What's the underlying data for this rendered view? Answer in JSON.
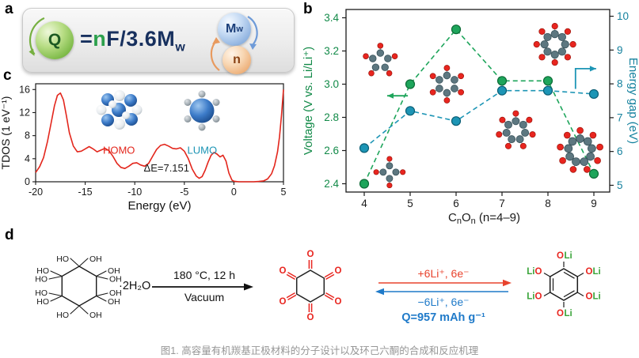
{
  "caption": "图1. 高容量有机羰基正极材料的分子设计以及环己六酮的合成和反应机理",
  "panel_labels": {
    "a": "a",
    "b": "b",
    "c": "c",
    "d": "d"
  },
  "panel_a": {
    "q": "Q",
    "eq": "=",
    "n": "n",
    "rest": "F/3.6M",
    "sub": "w",
    "mw_main": "M",
    "mw_sub": "w",
    "n_ball": "n"
  },
  "panel_d": {
    "hydrate": "·2H₂O",
    "cond_top": "180 °C, 12 h",
    "cond_bottom": "Vacuum",
    "forward": "+6Li⁺, 6e⁻",
    "backward": "−6Li⁺, 6e⁻",
    "capacity": "Q=957 mAh g⁻¹",
    "oh": "OH",
    "ho": "HO",
    "o": "O",
    "li": "Li"
  },
  "colors": {
    "voltage_green": "#1ea55b",
    "energy_gap_teal": "#1d95b5",
    "tdos_red": "#e3261c",
    "lithiation_red": "#e8432d",
    "delithiation_blue": "#1f7ac9",
    "lithium_green": "#3aa53a",
    "oxygen_red": "#e8251f"
  },
  "chart_data": [
    {
      "id": "panel_b",
      "type": "scatter",
      "x": [
        4,
        5,
        6,
        7,
        8,
        9
      ],
      "xlabel": "CnOn (n=4–9)",
      "xlabel_parts": {
        "base1": "C",
        "sub1": "n",
        "base2": "O",
        "sub2": "n",
        "rest": " (n=4–9)"
      },
      "ylabel_left": "Voltage (V vs. Li/Li⁺)",
      "ylabel_right": "Energy gap (eV)",
      "ylim_left": [
        2.35,
        3.45
      ],
      "ylim_right": [
        4.8,
        10.2
      ],
      "yticks_left": [
        2.4,
        2.6,
        2.8,
        3.0,
        3.2,
        3.4
      ],
      "yticks_right": [
        5,
        6,
        7,
        8,
        9,
        10
      ],
      "grid": false,
      "legend": "none",
      "series": [
        {
          "name": "Voltage (V vs. Li/Li⁺)",
          "axis": "left",
          "color": "#1ea55b",
          "edge": "#0c6b36",
          "label_color": "#128a48",
          "style": "dashed",
          "values": [
            2.4,
            3.0,
            3.33,
            3.02,
            3.02,
            2.46
          ]
        },
        {
          "name": "Energy gap (eV)",
          "axis": "right",
          "color": "#1d95b5",
          "edge": "#0b5e75",
          "label_color": "#15819e",
          "style": "dashed",
          "values": [
            6.1,
            7.2,
            6.9,
            7.8,
            7.8,
            7.7
          ]
        }
      ],
      "arrows": [
        {
          "axis": "left",
          "color": "#1ea55b",
          "points": [
            [
              4.95,
              2.93
            ],
            [
              4.5,
              2.93
            ]
          ]
        },
        {
          "axis": "right",
          "color": "#1d95b5",
          "points": [
            [
              8.6,
              7.85
            ],
            [
              8.6,
              8.45
            ],
            [
              9.05,
              8.45
            ]
          ]
        }
      ],
      "molecules": [
        {
          "n": 4,
          "x": 4.55,
          "y": 2.47,
          "r": 8
        },
        {
          "n": 5,
          "x": 4.35,
          "y": 3.14,
          "r": 10
        },
        {
          "n": 6,
          "x": 5.8,
          "y": 3.0,
          "r": 11
        },
        {
          "n": 7,
          "x": 7.3,
          "y": 2.72,
          "r": 12
        },
        {
          "n": 8,
          "x": 8.15,
          "y": 3.24,
          "r": 13
        },
        {
          "n": 9,
          "x": 8.7,
          "y": 2.6,
          "r": 15
        }
      ]
    },
    {
      "id": "panel_c",
      "type": "line",
      "xlabel": "Energy (eV)",
      "ylabel": "TDOS (1 eV⁻¹)",
      "xlim": [
        -20,
        5
      ],
      "ylim": [
        0,
        17
      ],
      "xticks": [
        -20,
        -15,
        -10,
        -5,
        0,
        5
      ],
      "yticks": [
        0,
        4,
        8,
        12,
        16
      ],
      "grid": false,
      "series": [
        {
          "name": "TDOS",
          "color": "#e3261c",
          "x": [
            -20.0,
            -19.6,
            -19.2,
            -18.8,
            -18.4,
            -18.1,
            -17.8,
            -17.5,
            -17.2,
            -16.9,
            -16.6,
            -16.2,
            -15.8,
            -15.4,
            -15.0,
            -14.6,
            -14.2,
            -13.8,
            -13.4,
            -13.0,
            -12.6,
            -12.2,
            -11.8,
            -11.4,
            -11.0,
            -10.6,
            -10.2,
            -9.8,
            -9.4,
            -9.0,
            -8.6,
            -8.2,
            -7.8,
            -7.4,
            -7.0,
            -6.6,
            -6.2,
            -5.8,
            -5.4,
            -5.0,
            -4.6,
            -4.2,
            -3.8,
            -3.5,
            -3.2,
            -2.9,
            -2.6,
            -2.3,
            -2.0,
            -1.7,
            -1.4,
            -1.1,
            -0.8,
            -0.5,
            -0.2,
            0.0,
            0.5,
            1.0,
            1.5,
            2.0,
            2.5,
            3.0,
            3.4,
            3.8,
            4.1,
            4.4,
            4.6,
            4.8,
            5.0
          ],
          "y": [
            1.6,
            2.6,
            4.2,
            7.0,
            10.5,
            13.2,
            15.0,
            15.4,
            14.2,
            11.5,
            8.5,
            6.2,
            5.2,
            5.3,
            5.7,
            6.1,
            5.7,
            5.2,
            5.5,
            5.8,
            5.4,
            4.4,
            3.2,
            2.5,
            2.3,
            2.7,
            3.2,
            3.3,
            2.9,
            2.7,
            3.2,
            4.4,
            5.6,
            6.3,
            6.5,
            6.2,
            5.8,
            5.7,
            5.9,
            5.3,
            4.0,
            2.2,
            1.0,
            0.6,
            0.9,
            2.0,
            3.4,
            4.6,
            5.1,
            4.8,
            4.3,
            4.6,
            3.6,
            1.5,
            0.3,
            0.1,
            0.0,
            0.0,
            0.0,
            0.0,
            0.05,
            0.15,
            0.5,
            1.4,
            2.8,
            5.2,
            7.8,
            11.5,
            16.0
          ]
        }
      ],
      "annotations": [
        {
          "text": "HOMO",
          "color": "#e3261c",
          "x": -11.6,
          "y": 4.9
        },
        {
          "text": "LUMO",
          "color": "#1d95b5",
          "x": -3.2,
          "y": 4.9
        },
        {
          "text": "ΔE=7.151",
          "color": "#1a1a1a",
          "x": -6.8,
          "y": 1.8
        }
      ]
    }
  ]
}
